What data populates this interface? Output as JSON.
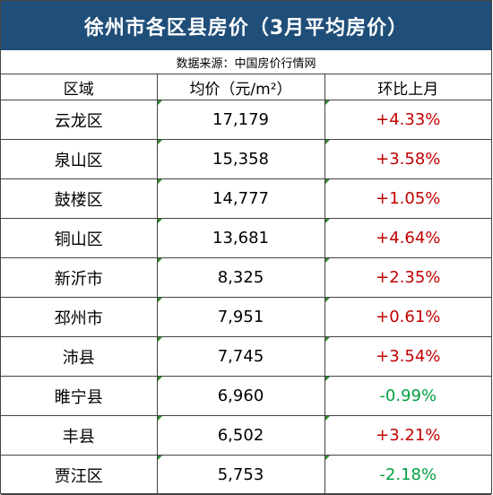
{
  "title": "徐州市各区县房价（3月平均房价）",
  "source": "数据来源：中国房价行情网",
  "headers": [
    "区域",
    "均价（元/m²）",
    "环比上月"
  ],
  "rows": [
    {
      "district": "云龙区",
      "price": "17,179",
      "change": "+4.33%"
    },
    {
      "district": "泉山区",
      "price": "15,358",
      "change": "+3.58%"
    },
    {
      "district": "鼓楼区",
      "price": "14,777",
      "change": "+1.05%"
    },
    {
      "district": "铜山区",
      "price": "13,681",
      "change": "+4.64%"
    },
    {
      "district": "新沂市",
      "price": "8,325",
      "change": "+2.35%"
    },
    {
      "district": "邳州市",
      "price": "7,951",
      "change": "+0.61%"
    },
    {
      "district": "沛县",
      "price": "7,745",
      "change": "+3.54%"
    },
    {
      "district": "睢宁县",
      "price": "6,960",
      "change": "-0.99%"
    },
    {
      "district": "丰县",
      "price": "6,502",
      "change": "+3.21%"
    },
    {
      "district": "贾汪区",
      "price": "5,753",
      "change": "-2.18%"
    }
  ],
  "colors": {
    "header_bg": "#1f4e79",
    "positive": "#c00000",
    "negative": "#00a040"
  }
}
